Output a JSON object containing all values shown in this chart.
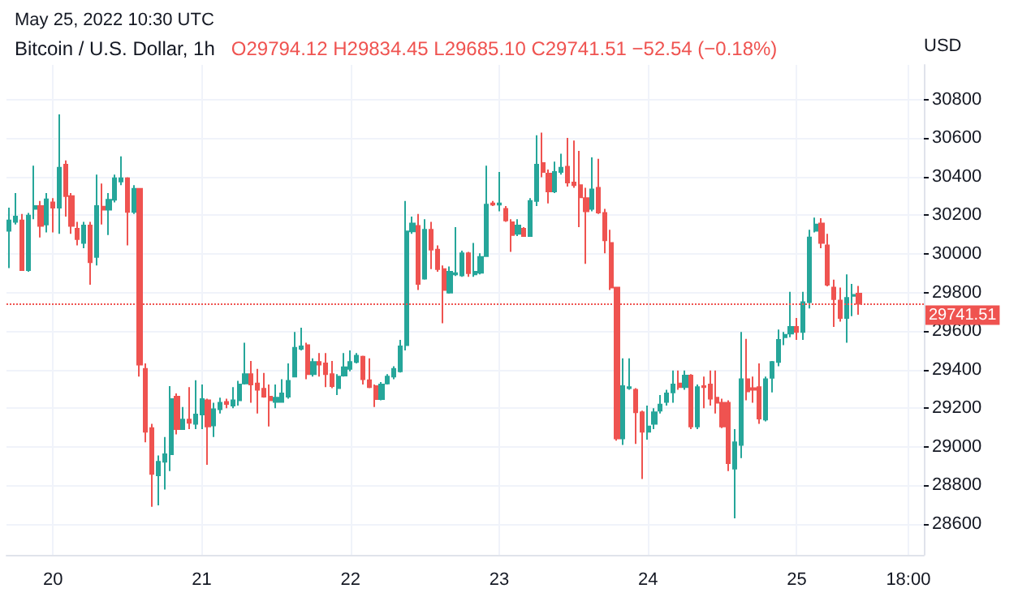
{
  "chart_data": {
    "type": "candlestick",
    "title": "Bitcoin / U.S. Dollar, 1h",
    "subtitle": "O29794.12 H29834.45 L29685.10 C29741.51 −52.54 (−0.18%)",
    "ylabel": "USD",
    "annotations": [
      "May 25, 2022 10:30 UTC"
    ],
    "colors": [
      "#26a69a",
      "#26a69a",
      "#ef5350",
      "#26a69a",
      "#26a69a",
      "#ef5350",
      "#26a69a",
      "#ef5350",
      "#26a69a",
      "#ef5350",
      "#ef5350",
      "#ef5350",
      "#26a69a",
      "#ef5350",
      "#26a69a",
      "#ef5350",
      "#26a69a",
      "#26a69a",
      "#26a69a",
      "#ef5350",
      "#26a69a",
      "#ef5350",
      "#ef5350",
      "#ef5350",
      "#26a69a",
      "#26a69a",
      "#26a69a",
      "#ef5350",
      "#26a69a",
      "#ef5350",
      "#26a69a",
      "#26a69a",
      "#ef5350",
      "#26a69a",
      "#26a69a",
      "#ef5350",
      "#26a69a",
      "#26a69a",
      "#26a69a",
      "#ef5350",
      "#ef5350",
      "#ef5350",
      "#ef5350",
      "#26a69a",
      "#26a69a",
      "#26a69a",
      "#26a69a",
      "#26a69a",
      "#ef5350",
      "#26a69a",
      "#ef5350",
      "#ef5350",
      "#ef5350",
      "#26a69a",
      "#26a69a",
      "#26a69a",
      "#26a69a",
      "#ef5350",
      "#ef5350",
      "#ef5350",
      "#26a69a",
      "#26a69a",
      "#26a69a",
      "#26a69a",
      "#26a69a",
      "#26a69a",
      "#ef5350",
      "#26a69a",
      "#ef5350",
      "#ef5350",
      "#ef5350",
      "#26a69a",
      "#26a69a",
      "#26a69a",
      "#ef5350",
      "#26a69a",
      "#26a69a",
      "#26a69a",
      "#ef5350",
      "#26a69a",
      "#ef5350",
      "#ef5350",
      "#26a69a",
      "#ef5350",
      "#26a69a",
      "#26a69a",
      "#ef5350",
      "#ef5350",
      "#26a69a",
      "#26a69a",
      "#ef5350",
      "#ef5350",
      "#ef5350",
      "#ef5350",
      "#26a69a",
      "#ef5350",
      "#ef5350",
      "#ef5350",
      "#ef5350",
      "#26a69a",
      "#26a69a",
      "#ef5350",
      "#ef5350",
      "#26a69a",
      "#26a69a",
      "#26a69a",
      "#26a69a",
      "#26a69a",
      "#ef5350",
      "#26a69a",
      "#ef5350",
      "#26a69a",
      "#ef5350",
      "#ef5350",
      "#ef5350",
      "#ef5350",
      "#ef5350",
      "#26a69a",
      "#26a69a",
      "#ef5350",
      "#ef5350",
      "#ef5350",
      "#26a69a",
      "#26a69a",
      "#26a69a",
      "#26a69a",
      "#26a69a",
      "#ef5350",
      "#26a69a",
      "#26a69a",
      "#26a69a",
      "#ef5350",
      "#ef5350",
      "#ef5350",
      "#ef5350",
      "#26a69a",
      "#26a69a",
      "#ef5350"
    ],
    "grid": true,
    "xlim": [
      "2022-05-19T16:30",
      "2022-05-25T20:30"
    ],
    "xticks": [
      {
        "value": "2022-05-20T00:00",
        "label": "20"
      },
      {
        "value": "2022-05-21T00:00",
        "label": "21"
      },
      {
        "value": "2022-05-22T00:00",
        "label": "22"
      },
      {
        "value": "2022-05-23T00:00",
        "label": "23"
      },
      {
        "value": "2022-05-24T00:00",
        "label": "24"
      },
      {
        "value": "2022-05-25T00:00",
        "label": "25"
      },
      {
        "value": "2022-05-25T18:00",
        "label": "18:00"
      }
    ],
    "ylim": [
      28440,
      30980
    ],
    "yticks": [
      28600,
      28800,
      29000,
      29200,
      29400,
      29600,
      29800,
      30000,
      30200,
      30400,
      30600,
      30800
    ],
    "ref_lines": [
      {
        "axis": "y",
        "value": 29741.51,
        "label": "29741.51",
        "color": "#ef5350",
        "line_style": "dotted"
      }
    ],
    "x": [
      "2022-05-19T17:00",
      "2022-05-19T18:00",
      "2022-05-19T19:00",
      "2022-05-19T20:00",
      "2022-05-19T21:00",
      "2022-05-19T22:00",
      "2022-05-19T23:00",
      "2022-05-20T00:00",
      "2022-05-20T01:00",
      "2022-05-20T02:00",
      "2022-05-20T03:00",
      "2022-05-20T04:00",
      "2022-05-20T05:00",
      "2022-05-20T06:00",
      "2022-05-20T07:00",
      "2022-05-20T08:00",
      "2022-05-20T09:00",
      "2022-05-20T10:00",
      "2022-05-20T11:00",
      "2022-05-20T12:00",
      "2022-05-20T13:00",
      "2022-05-20T14:00",
      "2022-05-20T15:00",
      "2022-05-20T16:00",
      "2022-05-20T17:00",
      "2022-05-20T18:00",
      "2022-05-20T19:00",
      "2022-05-20T20:00",
      "2022-05-20T21:00",
      "2022-05-20T22:00",
      "2022-05-20T23:00",
      "2022-05-21T00:00",
      "2022-05-21T01:00",
      "2022-05-21T02:00",
      "2022-05-21T03:00",
      "2022-05-21T04:00",
      "2022-05-21T05:00",
      "2022-05-21T06:00",
      "2022-05-21T07:00",
      "2022-05-21T08:00",
      "2022-05-21T09:00",
      "2022-05-21T10:00",
      "2022-05-21T11:00",
      "2022-05-21T12:00",
      "2022-05-21T13:00",
      "2022-05-21T14:00",
      "2022-05-21T15:00",
      "2022-05-21T16:00",
      "2022-05-21T17:00",
      "2022-05-21T18:00",
      "2022-05-21T19:00",
      "2022-05-21T20:00",
      "2022-05-21T21:00",
      "2022-05-21T22:00",
      "2022-05-21T23:00",
      "2022-05-22T00:00",
      "2022-05-22T01:00",
      "2022-05-22T02:00",
      "2022-05-22T03:00",
      "2022-05-22T04:00",
      "2022-05-22T05:00",
      "2022-05-22T06:00",
      "2022-05-22T07:00",
      "2022-05-22T08:00",
      "2022-05-22T09:00",
      "2022-05-22T10:00",
      "2022-05-22T11:00",
      "2022-05-22T12:00",
      "2022-05-22T13:00",
      "2022-05-22T14:00",
      "2022-05-22T15:00",
      "2022-05-22T16:00",
      "2022-05-22T17:00",
      "2022-05-22T18:00",
      "2022-05-22T19:00",
      "2022-05-22T20:00",
      "2022-05-22T21:00",
      "2022-05-22T22:00",
      "2022-05-22T23:00",
      "2022-05-23T00:00",
      "2022-05-23T01:00",
      "2022-05-23T02:00",
      "2022-05-23T03:00",
      "2022-05-23T04:00",
      "2022-05-23T05:00",
      "2022-05-23T06:00",
      "2022-05-23T07:00",
      "2022-05-23T08:00",
      "2022-05-23T09:00",
      "2022-05-23T10:00",
      "2022-05-23T11:00",
      "2022-05-23T12:00",
      "2022-05-23T13:00",
      "2022-05-23T14:00",
      "2022-05-23T15:00",
      "2022-05-23T16:00",
      "2022-05-23T17:00",
      "2022-05-23T18:00",
      "2022-05-23T19:00",
      "2022-05-23T20:00",
      "2022-05-23T21:00",
      "2022-05-23T22:00",
      "2022-05-23T23:00",
      "2022-05-24T00:00",
      "2022-05-24T01:00",
      "2022-05-24T02:00",
      "2022-05-24T03:00",
      "2022-05-24T04:00",
      "2022-05-24T05:00",
      "2022-05-24T06:00",
      "2022-05-24T07:00",
      "2022-05-24T08:00",
      "2022-05-24T09:00",
      "2022-05-24T10:00",
      "2022-05-24T11:00",
      "2022-05-24T12:00",
      "2022-05-24T13:00",
      "2022-05-24T14:00",
      "2022-05-24T15:00",
      "2022-05-24T16:00",
      "2022-05-24T17:00",
      "2022-05-24T18:00",
      "2022-05-24T19:00",
      "2022-05-24T20:00",
      "2022-05-24T21:00",
      "2022-05-24T22:00",
      "2022-05-24T23:00",
      "2022-05-25T00:00",
      "2022-05-25T01:00",
      "2022-05-25T02:00",
      "2022-05-25T03:00",
      "2022-05-25T04:00",
      "2022-05-25T05:00",
      "2022-05-25T06:00",
      "2022-05-25T07:00",
      "2022-05-25T08:00",
      "2022-05-25T09:00",
      "2022-05-25T10:00"
    ],
    "ohlc": [
      [
        30120,
        30240,
        29927,
        30174
      ],
      [
        30166,
        30316,
        30153,
        30194
      ],
      [
        30174,
        30207,
        29916,
        29916
      ],
      [
        29916,
        30213,
        29908,
        30199
      ],
      [
        30234,
        30457,
        30180,
        30248
      ],
      [
        30248,
        30275,
        30085,
        30145
      ],
      [
        30153,
        30316,
        30112,
        30283
      ],
      [
        30267,
        30289,
        30112,
        30240
      ],
      [
        30240,
        30724,
        30104,
        30447
      ],
      [
        30463,
        30485,
        30194,
        30300
      ],
      [
        30300,
        30316,
        30104,
        30145
      ],
      [
        30131,
        30166,
        30044,
        30077
      ],
      [
        30057,
        30166,
        30030,
        30147
      ],
      [
        30147,
        30166,
        29840,
        29957
      ],
      [
        29984,
        30411,
        29940,
        30248
      ],
      [
        30245,
        30365,
        30153,
        30229
      ],
      [
        30229,
        30316,
        30098,
        30281
      ],
      [
        30281,
        30411,
        30267,
        30392
      ],
      [
        30376,
        30506,
        30357,
        30392
      ],
      [
        30392,
        30398,
        30044,
        30218
      ],
      [
        30218,
        30357,
        30207,
        30338
      ],
      [
        30338,
        30338,
        29364,
        29426
      ],
      [
        29404,
        29432,
        29023,
        29078
      ],
      [
        29097,
        29119,
        28689,
        28860
      ],
      [
        28852,
        28955,
        28697,
        28923
      ],
      [
        28923,
        29051,
        28779,
        28961
      ],
      [
        28961,
        29315,
        28874,
        29247
      ],
      [
        29260,
        29277,
        29064,
        29092
      ],
      [
        29092,
        29206,
        29092,
        29141
      ],
      [
        29141,
        29309,
        29092,
        29124
      ],
      [
        29119,
        29345,
        29092,
        29168
      ],
      [
        29168,
        29323,
        29092,
        29247
      ],
      [
        29241,
        29249,
        28907,
        29105
      ],
      [
        29111,
        29228,
        29051,
        29195
      ],
      [
        29195,
        29255,
        29173,
        29228
      ],
      [
        29233,
        29249,
        29200,
        29222
      ],
      [
        29214,
        29309,
        29200,
        29241
      ],
      [
        29241,
        29342,
        29214,
        29323
      ],
      [
        29328,
        29540,
        29323,
        29377
      ],
      [
        29377,
        29445,
        29228,
        29323
      ],
      [
        29328,
        29404,
        29173,
        29296
      ],
      [
        29301,
        29383,
        29255,
        29260
      ],
      [
        29260,
        29323,
        29105,
        29241
      ],
      [
        29233,
        29323,
        29200,
        29255
      ],
      [
        29233,
        29350,
        29228,
        29277
      ],
      [
        29260,
        29432,
        29249,
        29342
      ],
      [
        29364,
        29595,
        29364,
        29513
      ],
      [
        29508,
        29617,
        29500,
        29521
      ],
      [
        29527,
        29540,
        29350,
        29377
      ],
      [
        29377,
        29459,
        29364,
        29440
      ],
      [
        29440,
        29486,
        29364,
        29426
      ],
      [
        29432,
        29486,
        29309,
        29377
      ],
      [
        29377,
        29445,
        29304,
        29315
      ],
      [
        29304,
        29377,
        29268,
        29364
      ],
      [
        29369,
        29486,
        29364,
        29413
      ],
      [
        29404,
        29500,
        29391,
        29440
      ],
      [
        29440,
        29486,
        29432,
        29472
      ],
      [
        29467,
        29472,
        29323,
        29350
      ],
      [
        29345,
        29459,
        29304,
        29309
      ],
      [
        29315,
        29323,
        29206,
        29247
      ],
      [
        29247,
        29336,
        29241,
        29323
      ],
      [
        29328,
        29377,
        29323,
        29364
      ],
      [
        29364,
        29418,
        29350,
        29404
      ],
      [
        29391,
        29554,
        29385,
        29521
      ],
      [
        29527,
        30275,
        29500,
        30117
      ],
      [
        30117,
        30194,
        30104,
        30158
      ],
      [
        30145,
        30207,
        29813,
        29845
      ],
      [
        29872,
        30180,
        29867,
        30125
      ],
      [
        30125,
        30166,
        29921,
        30022
      ],
      [
        30022,
        30044,
        29908,
        29921
      ],
      [
        29921,
        29940,
        29641,
        29813
      ],
      [
        29799,
        29935,
        29794,
        29908
      ],
      [
        29894,
        30139,
        29886,
        29900
      ],
      [
        29889,
        30017,
        29881,
        30003
      ],
      [
        30003,
        30011,
        29881,
        29900
      ],
      [
        29894,
        30057,
        29881,
        29908
      ],
      [
        29902,
        30003,
        29894,
        29984
      ],
      [
        29989,
        30457,
        29984,
        30256
      ],
      [
        30262,
        30275,
        30248,
        30256
      ],
      [
        30256,
        30425,
        30221,
        30262
      ],
      [
        30234,
        30248,
        30166,
        30174
      ],
      [
        30164,
        30180,
        30011,
        30098
      ],
      [
        30104,
        30180,
        30093,
        30147
      ],
      [
        30131,
        30139,
        30090,
        30093
      ],
      [
        30093,
        30289,
        30090,
        30275
      ],
      [
        30275,
        30615,
        30248,
        30463
      ],
      [
        30471,
        30629,
        30398,
        30425
      ],
      [
        30417,
        30438,
        30262,
        30324
      ],
      [
        30324,
        30479,
        30316,
        30425
      ],
      [
        30425,
        30520,
        30411,
        30447
      ],
      [
        30452,
        30602,
        30349,
        30370
      ],
      [
        30370,
        30588,
        30343,
        30357
      ],
      [
        30357,
        30534,
        30139,
        30294
      ],
      [
        30289,
        30343,
        29949,
        30221
      ],
      [
        30234,
        30501,
        30221,
        30335
      ],
      [
        30343,
        30493,
        30207,
        30215
      ],
      [
        30213,
        30234,
        30003,
        30071
      ],
      [
        30057,
        30125,
        29813,
        29826
      ],
      [
        29826,
        29826,
        29032,
        29043
      ],
      [
        29043,
        29459,
        29010,
        29315
      ],
      [
        29304,
        29459,
        29296,
        29309
      ],
      [
        29296,
        29304,
        29015,
        29179
      ],
      [
        29179,
        29187,
        28833,
        29078
      ],
      [
        29078,
        29214,
        29037,
        29105
      ],
      [
        29119,
        29200,
        29092,
        29179
      ],
      [
        29187,
        29268,
        29173,
        29219
      ],
      [
        29233,
        29296,
        29214,
        29277
      ],
      [
        29282,
        29396,
        29228,
        29323
      ],
      [
        29328,
        29396,
        29296,
        29309
      ],
      [
        29309,
        29396,
        29296,
        29369
      ],
      [
        29369,
        29377,
        29092,
        29105
      ],
      [
        29105,
        29323,
        29092,
        29309
      ],
      [
        29315,
        29364,
        29200,
        29309
      ],
      [
        29323,
        29396,
        29214,
        29249
      ],
      [
        29255,
        29396,
        29173,
        29228
      ],
      [
        29228,
        29249,
        29097,
        29105
      ],
      [
        29228,
        29241,
        28874,
        28915
      ],
      [
        28887,
        29092,
        28629,
        29023
      ],
      [
        29010,
        29595,
        28942,
        29350
      ],
      [
        29350,
        29560,
        29241,
        29287
      ],
      [
        29304,
        29364,
        29228,
        29296
      ],
      [
        29309,
        29432,
        29119,
        29146
      ],
      [
        29141,
        29364,
        29132,
        29350
      ],
      [
        29358,
        29445,
        29282,
        29440
      ],
      [
        29440,
        29608,
        29418,
        29554
      ],
      [
        29568,
        29595,
        29527,
        29581
      ],
      [
        29587,
        29804,
        29568,
        29622
      ],
      [
        29622,
        29668,
        29554,
        29595
      ],
      [
        29595,
        29804,
        29554,
        29750
      ],
      [
        29750,
        30125,
        29717,
        30085
      ],
      [
        30120,
        30188,
        30112,
        30153
      ],
      [
        30158,
        30185,
        30030,
        30057
      ],
      [
        30044,
        30104,
        29832,
        29840
      ],
      [
        29826,
        29867,
        29622,
        29766
      ],
      [
        29758,
        29826,
        29649,
        29668
      ],
      [
        29668,
        29894,
        29540,
        29772
      ],
      [
        29783,
        29845,
        29677,
        29788
      ],
      [
        29794.12,
        29834.45,
        29685.1,
        29741.51
      ]
    ]
  }
}
